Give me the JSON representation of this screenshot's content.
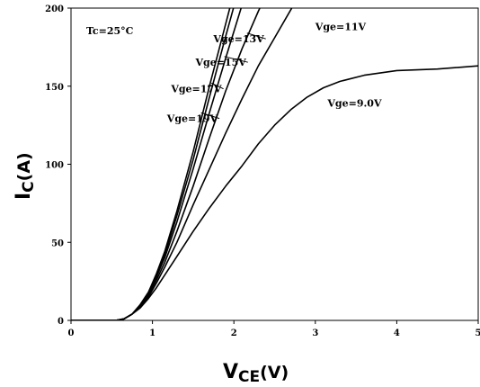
{
  "chart_data": {
    "type": "line",
    "xlabel_main": "V",
    "xlabel_sub": "CE",
    "xlabel_unit": "(V)",
    "ylabel_main": "I",
    "ylabel_sub": "C",
    "ylabel_unit": "(A)",
    "xlim": [
      0,
      5
    ],
    "ylim": [
      0,
      200
    ],
    "xticks": [
      "0",
      "1",
      "2",
      "3",
      "4",
      "5"
    ],
    "yticks": [
      "0",
      "50",
      "100",
      "150",
      "200"
    ],
    "grid": false,
    "condition_label": "Tc=25°C",
    "series": [
      {
        "name": "Vge=19V",
        "x": [
          0,
          0.55,
          0.65,
          0.75,
          0.85,
          0.95,
          1.05,
          1.15,
          1.3,
          1.5,
          1.7,
          1.9,
          2.05
        ],
        "y": [
          0,
          0,
          1,
          4,
          10,
          18,
          30,
          44,
          70,
          108,
          150,
          190,
          220
        ]
      },
      {
        "name": "Vge=17V",
        "x": [
          0,
          0.55,
          0.65,
          0.75,
          0.85,
          0.95,
          1.05,
          1.15,
          1.3,
          1.5,
          1.7,
          1.9,
          2.1
        ],
        "y": [
          0,
          0,
          1,
          4,
          10,
          18,
          29,
          42,
          67,
          103,
          143,
          182,
          220
        ]
      },
      {
        "name": "Vge=15V",
        "x": [
          0,
          0.55,
          0.65,
          0.75,
          0.85,
          0.95,
          1.05,
          1.15,
          1.3,
          1.5,
          1.7,
          1.9,
          2.1,
          2.2
        ],
        "y": [
          0,
          0,
          1,
          4,
          10,
          17,
          28,
          40,
          63,
          97,
          133,
          168,
          202,
          220
        ]
      },
      {
        "name": "Vge=13V",
        "x": [
          0,
          0.55,
          0.65,
          0.75,
          0.85,
          0.95,
          1.05,
          1.15,
          1.3,
          1.5,
          1.7,
          1.9,
          2.1,
          2.3,
          2.5
        ],
        "y": [
          0,
          0,
          1,
          4,
          9,
          16,
          26,
          37,
          57,
          86,
          117,
          147,
          174,
          198,
          220
        ]
      },
      {
        "name": "Vge=11V",
        "x": [
          0,
          0.55,
          0.65,
          0.75,
          0.85,
          0.95,
          1.05,
          1.15,
          1.3,
          1.5,
          1.7,
          1.9,
          2.1,
          2.3,
          2.5,
          2.7,
          2.85
        ],
        "y": [
          0,
          0,
          1,
          4,
          9,
          15,
          24,
          34,
          50,
          74,
          97,
          120,
          142,
          163,
          181,
          199,
          212
        ]
      },
      {
        "name": "Vge=9.0V",
        "x": [
          0,
          0.55,
          0.65,
          0.75,
          0.85,
          0.95,
          1.05,
          1.15,
          1.3,
          1.5,
          1.7,
          1.9,
          2.1,
          2.3,
          2.5,
          2.7,
          2.9,
          3.1,
          3.3,
          3.6,
          4.0,
          4.5,
          5.0
        ],
        "y": [
          0,
          0,
          1,
          4,
          8,
          14,
          21,
          29,
          41,
          57,
          72,
          86,
          99,
          113,
          125,
          135,
          143,
          149,
          153,
          157,
          160,
          161,
          163
        ]
      }
    ],
    "annotations": [
      {
        "text": "Vge=13V",
        "series": "Vge=13V",
        "x": 2.37,
        "y": 178
      },
      {
        "text": "Vge=15V",
        "series": "Vge=15V",
        "x": 2.15,
        "y": 163
      },
      {
        "text": "Vge=17V",
        "series": "Vge=17V",
        "x": 1.85,
        "y": 146
      },
      {
        "text": "Vge=19V",
        "series": "Vge=19V",
        "x": 1.8,
        "y": 127
      },
      {
        "text": "Vge=11V",
        "series": "Vge=11V",
        "x": 3.0,
        "y": 186
      },
      {
        "text": "Vge=9.0V",
        "series": "Vge=9.0V",
        "x": 3.15,
        "y": 137
      }
    ]
  }
}
